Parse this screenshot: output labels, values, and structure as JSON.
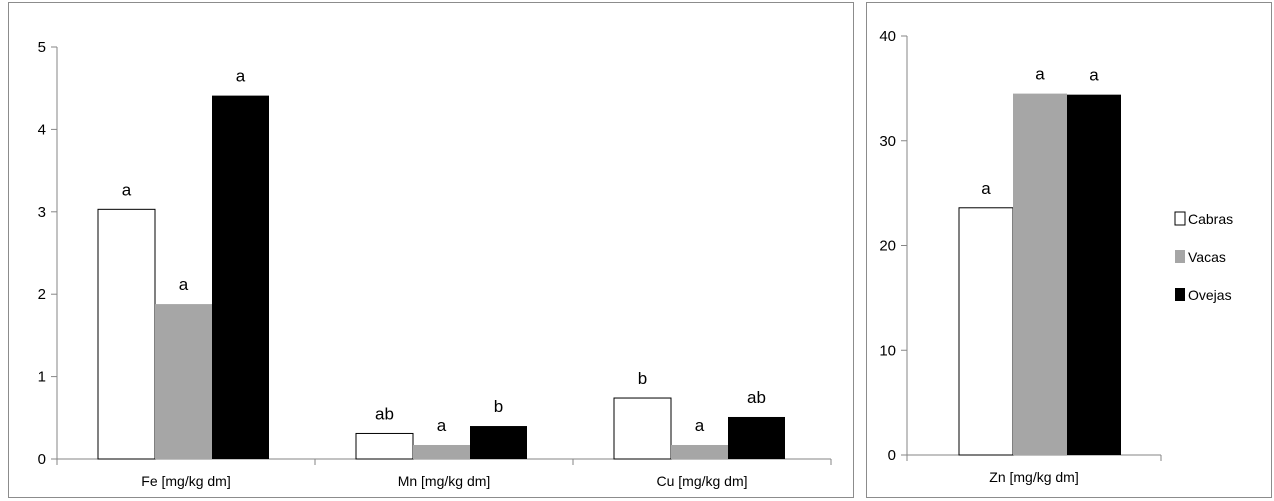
{
  "chart_data": [
    {
      "type": "bar",
      "categories": [
        "Fe [mg/kg  dm]",
        "Mn [mg/kg  dm]",
        "Cu [mg/kg  dm]"
      ],
      "ylim": [
        0,
        5
      ],
      "yticks": [
        0,
        1,
        2,
        3,
        4,
        5
      ],
      "series": [
        {
          "name": "Cabras",
          "color": "#ffffff",
          "values": [
            3.03,
            0.31,
            0.74
          ],
          "labels": [
            "a",
            "ab",
            "b"
          ]
        },
        {
          "name": "Vacas",
          "color": "#a6a6a6",
          "values": [
            1.88,
            0.17,
            0.17
          ],
          "labels": [
            "a",
            "a",
            "a"
          ]
        },
        {
          "name": "Ovejas",
          "color": "#000000",
          "values": [
            4.41,
            0.4,
            0.51
          ],
          "labels": [
            "a",
            "b",
            "ab"
          ]
        }
      ],
      "grid": false,
      "legend": "none"
    },
    {
      "type": "bar",
      "categories": [
        "Zn [mg/kg  dm]"
      ],
      "ylim": [
        0,
        40
      ],
      "yticks": [
        0,
        10,
        20,
        30,
        40
      ],
      "series": [
        {
          "name": "Cabras",
          "color": "#ffffff",
          "values": [
            23.6
          ],
          "labels": [
            "a"
          ]
        },
        {
          "name": "Vacas",
          "color": "#a6a6a6",
          "values": [
            34.5
          ],
          "labels": [
            "a"
          ]
        },
        {
          "name": "Ovejas",
          "color": "#000000",
          "values": [
            34.4
          ],
          "labels": [
            "a"
          ]
        }
      ],
      "grid": false,
      "legend": "right"
    }
  ]
}
